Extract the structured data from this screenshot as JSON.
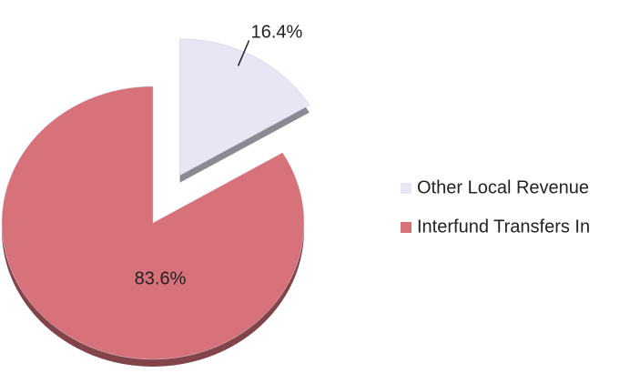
{
  "chart_data": {
    "type": "pie",
    "categories": [
      "Other Local Revenue",
      "Interfund Transfers In"
    ],
    "values": [
      16.4,
      83.6
    ],
    "value_labels": [
      "16.4%",
      "83.6%"
    ],
    "colors": [
      "#e6e6f5",
      "#d8727a"
    ],
    "legend": "right"
  }
}
